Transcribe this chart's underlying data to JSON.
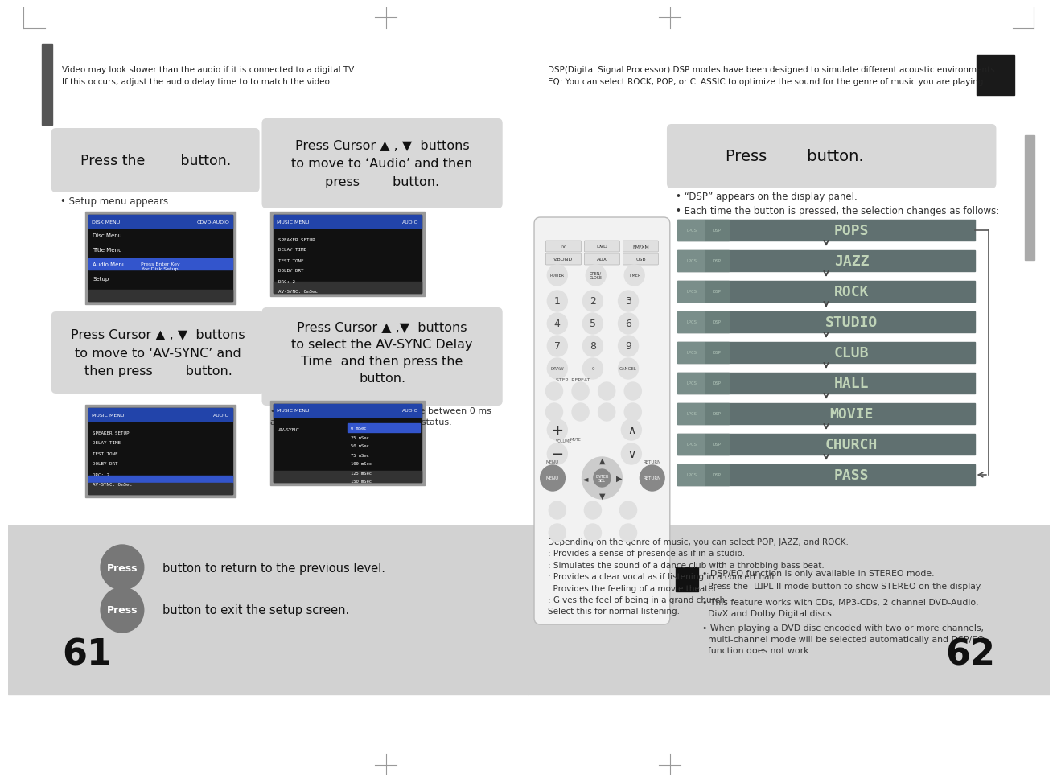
{
  "bg_color": "#ffffff",
  "bottom_bg": "#d2d2d2",
  "box_color": "#d8d8d8",
  "left_page_num": "61",
  "right_page_num": "62",
  "left_header_text": "Video may look slower than the audio if it is connected to a digital TV.\nIf this occurs, adjust the audio delay time to to match the video.",
  "right_header_text": "DSP(Digital Signal Processor) DSP modes have been designed to simulate different acoustic environments.\nEQ: You can select ROCK, POP, or CLASSIC to optimize the sound for the genre of music you are playing",
  "left_box1_text": "Press the        button.",
  "left_box2_text": "Press Cursor ▲ , ▼  buttons\nto move to ‘Audio’ and then\npress        button.",
  "left_box3_text": "Press Cursor ▲ , ▼  buttons\nto move to ‘AV-SYNC’ and\nthen press        button.",
  "left_box4_text": "Press Cursor ▲ ,▼  buttons\nto select the AV-SYNC Delay\nTime  and then press the\nbutton.",
  "bullet1": "• Setup menu appears.",
  "bullet2": "• You can set the audio delay time between 0 ms\nand 300 ms. Set it to the optimal status.",
  "right_box_text": "Press        button.",
  "right_bullet1": "• “DSP” appears on the display panel.",
  "right_bullet2": "• Each time the button is pressed, the selection changes as follows:",
  "dsp_modes": [
    "POPS",
    "JAZZ",
    "ROCK",
    "STUDIO",
    "CLUB",
    "HALL",
    "MOVIE",
    "CHURCH",
    "PASS"
  ],
  "dsp_bar_color": "#607070",
  "dsp_text_color": "#c0d4b8",
  "right_notes": [
    "• DSP/EQ function is only available in STEREO mode.",
    "  Press the  ШPL II mode button to show STEREO on the display.",
    "• This feature works with CDs, MP3-CDs, 2 channel DVD-Audio,\n  DivX and Dolby Digital discs.",
    "• When playing a DVD disc encoded with two or more channels,\n  multi-channel mode will be selected automatically and DSP/EQ\n  function does not work."
  ],
  "bottom_text1": "button to return to the previous level.",
  "bottom_text2": "button to exit the setup screen.",
  "sidebar_color": "#555555",
  "black_square_color": "#1a1a1a",
  "depending_text": "Depending on the genre of music, you can select POP, JAZZ, and ROCK.\n: Provides a sense of presence as if in a studio.\n: Simulates the sound of a dance club with a throbbing bass beat.\n: Provides a clear vocal as if listening in a concert hall.\n  Provides the feeling of a movie theater.\n: Gives the feel of being in a grand church.\nSelect this for normal listening."
}
